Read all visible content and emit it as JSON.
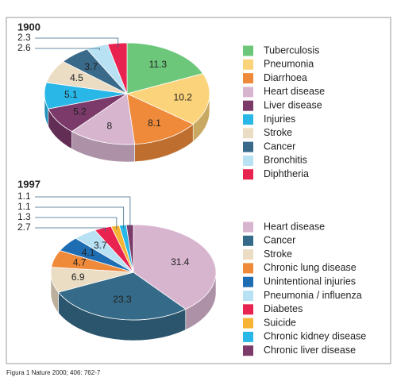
{
  "chart_data": [
    {
      "type": "pie3d",
      "title": "1900",
      "categories": [
        "Tuberculosis",
        "Pneumonia",
        "Diarrhoea",
        "Heart disease",
        "Liver disease",
        "Injuries",
        "Stroke",
        "Cancer",
        "Bronchitis",
        "Diphtheria"
      ],
      "values": [
        11.3,
        10.2,
        8.1,
        8.0,
        5.2,
        5.1,
        4.5,
        3.7,
        2.6,
        2.3
      ],
      "colors": [
        "#6cc77a",
        "#fbd37a",
        "#ee8a3a",
        "#d8b5cf",
        "#7b3a6a",
        "#29b7e8",
        "#ebdcc4",
        "#3a6a8a",
        "#b9e1f4",
        "#e8234f"
      ]
    },
    {
      "type": "pie3d",
      "title": "1997",
      "categories": [
        "Heart disease",
        "Cancer",
        "Stroke",
        "Chronic lung disease",
        "Unintentional injuries",
        "Pneumonia / influenza",
        "Diabetes",
        "Suicide",
        "Chronic kidney disease",
        "Chronic liver disease"
      ],
      "values": [
        31.4,
        23.3,
        6.9,
        4.7,
        4.1,
        3.7,
        2.7,
        1.3,
        1.1,
        1.1
      ],
      "colors": [
        "#d8b5cf",
        "#356a88",
        "#ebdcc4",
        "#ee8a3a",
        "#1e6db3",
        "#b9e1f4",
        "#e8234f",
        "#f7b334",
        "#29b7e8",
        "#7b3a6a"
      ]
    }
  ],
  "caption": "Figura 1 Nature 2000; 406: 762-7"
}
